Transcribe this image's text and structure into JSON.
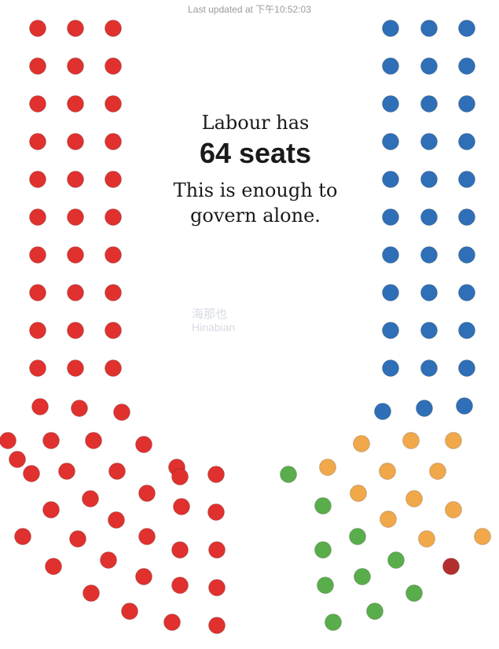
{
  "header": {
    "last_updated": "Last updated at 下午10:52:03"
  },
  "headline": {
    "line1": "Labour has",
    "line2": "64 seats",
    "line3": "This is enough to govern alone."
  },
  "watermark": {
    "zh": "海那也",
    "en": "Hinabian"
  },
  "chart_data": {
    "type": "parliament",
    "title": "",
    "total_seats": 120,
    "series": [
      {
        "seats": 64,
        "color": "#e0312f"
      },
      {
        "seats": 33,
        "color": "#2f6fb7"
      },
      {
        "seats": 10,
        "color": "#5aad4b"
      },
      {
        "seats": 12,
        "color": "#f0a84a"
      },
      {
        "seats": 1,
        "color": "#b32e2e"
      }
    ]
  }
}
